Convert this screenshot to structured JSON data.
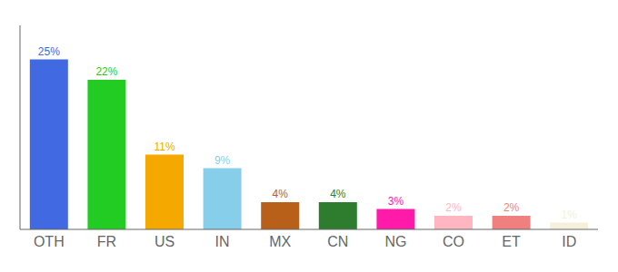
{
  "chart_data": {
    "type": "bar",
    "categories": [
      "OTH",
      "FR",
      "US",
      "IN",
      "MX",
      "CN",
      "NG",
      "CO",
      "ET",
      "ID"
    ],
    "values": [
      25,
      22,
      11,
      9,
      4,
      4,
      3,
      2,
      2,
      1
    ],
    "value_labels": [
      "25%",
      "22%",
      "11%",
      "9%",
      "4%",
      "4%",
      "3%",
      "2%",
      "2%",
      "1%"
    ],
    "colors": [
      "#4169e1",
      "#22cc22",
      "#f5a800",
      "#87ceeb",
      "#b8601a",
      "#2e7d2e",
      "#ff1aaa",
      "#ffb6c1",
      "#f08080",
      "#f5f0dc"
    ],
    "ylim": [
      0,
      30
    ],
    "data_labels": true,
    "tick_labels": "x",
    "grid": false
  }
}
